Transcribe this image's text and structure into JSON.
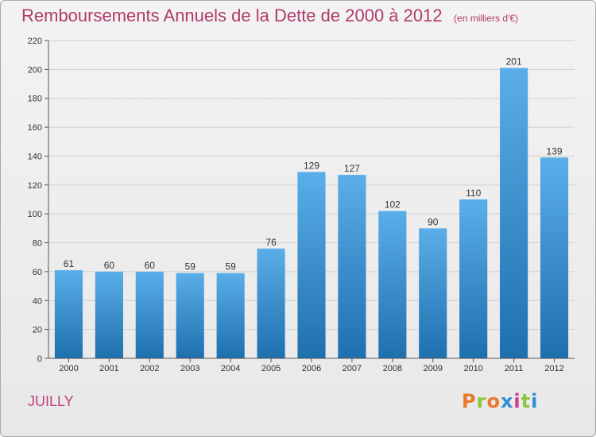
{
  "header": {
    "title": "Remboursements Annuels de la Dette de 2000 à 2012",
    "subtitle": "(en milliers d'€)"
  },
  "footer": {
    "commune": "JUILLY",
    "logo_text": "Proxiti",
    "logo_colors": [
      "#e87a2a",
      "#8bc53f",
      "#e87a2a",
      "#2f8fd6",
      "#d13a8a",
      "#8bc53f",
      "#2f8fd6"
    ]
  },
  "colors": {
    "bar_top": "#5aaee9",
    "bar_bottom": "#1e6fae",
    "title": "#b03a6b",
    "grid": "#cfcfcf",
    "axis_text": "#333333"
  },
  "chart_data": {
    "type": "bar",
    "title": "Remboursements Annuels de la Dette de 2000 à 2012",
    "subtitle": "(en milliers d'€)",
    "categories": [
      "2000",
      "2001",
      "2002",
      "2003",
      "2004",
      "2005",
      "2006",
      "2007",
      "2008",
      "2009",
      "2010",
      "2011",
      "2012"
    ],
    "values": [
      61,
      60,
      60,
      59,
      59,
      76,
      129,
      127,
      102,
      90,
      110,
      201,
      139
    ],
    "ylim": [
      0,
      220
    ],
    "yticks": [
      0,
      20,
      40,
      60,
      80,
      100,
      120,
      140,
      160,
      180,
      200,
      220
    ],
    "grid": true,
    "data_labels": true
  }
}
